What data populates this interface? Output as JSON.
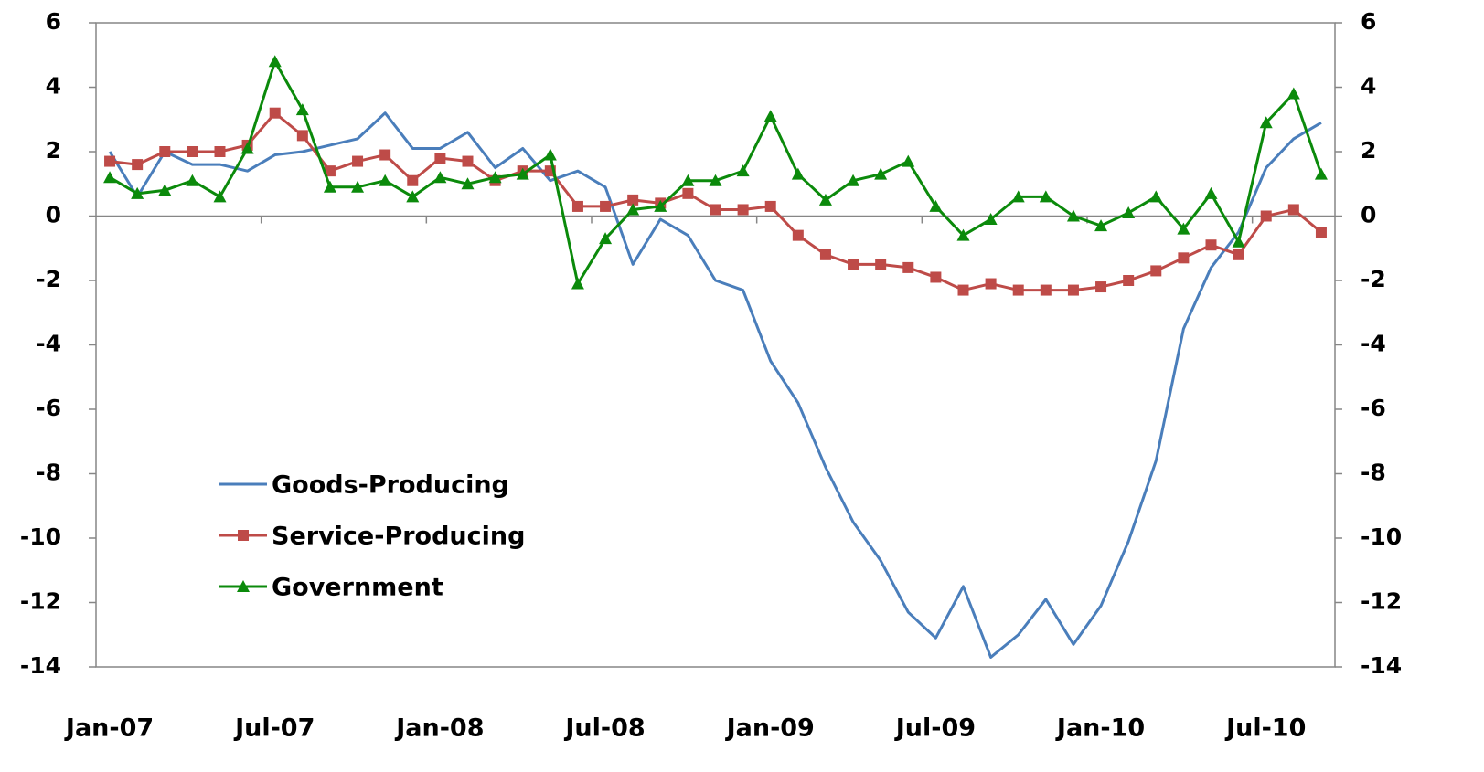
{
  "chart_data": {
    "type": "line",
    "categories": [
      "Jan-07",
      null,
      null,
      null,
      null,
      null,
      "Jul-07",
      null,
      null,
      null,
      null,
      null,
      "Jan-08",
      null,
      null,
      null,
      null,
      null,
      "Jul-08",
      null,
      null,
      null,
      null,
      null,
      "Jan-09",
      null,
      null,
      null,
      null,
      null,
      "Jul-09",
      null,
      null,
      null,
      null,
      null,
      "Jan-10",
      null,
      null,
      null,
      null,
      null,
      "Jul-10",
      null,
      null
    ],
    "series": [
      {
        "name": "Goods-Producing",
        "color": "#4a7ebb",
        "marker": "none",
        "values": [
          2.0,
          0.6,
          2.0,
          1.6,
          1.6,
          1.4,
          1.9,
          2.0,
          2.2,
          2.4,
          3.2,
          2.1,
          2.1,
          2.6,
          1.5,
          2.1,
          1.1,
          1.4,
          0.9,
          -1.5,
          -0.1,
          -0.6,
          -2.0,
          -2.3,
          -4.5,
          -5.8,
          -7.8,
          -9.5,
          -10.7,
          -12.3,
          -13.1,
          -11.5,
          -13.7,
          -13.0,
          -11.9,
          -13.3,
          -12.1,
          -10.1,
          -7.6,
          -3.5,
          -1.6,
          -0.5,
          1.5,
          2.4,
          2.9
        ]
      },
      {
        "name": "Service-Producing",
        "color": "#be4b48",
        "marker": "square",
        "values": [
          1.7,
          1.6,
          2.0,
          2.0,
          2.0,
          2.2,
          3.2,
          2.5,
          1.4,
          1.7,
          1.9,
          1.1,
          1.8,
          1.7,
          1.1,
          1.4,
          1.4,
          0.3,
          0.3,
          0.5,
          0.4,
          0.7,
          0.2,
          0.2,
          0.3,
          -0.6,
          -1.2,
          -1.5,
          -1.5,
          -1.6,
          -1.9,
          -2.3,
          -2.1,
          -2.3,
          -2.3,
          -2.3,
          -2.2,
          -2.0,
          -1.7,
          -1.3,
          -0.9,
          -1.2,
          0.0,
          0.2,
          -0.5
        ]
      },
      {
        "name": "Government",
        "color": "#0b8a0b",
        "marker": "triangle",
        "values": [
          1.2,
          0.7,
          0.8,
          1.1,
          0.6,
          2.1,
          4.8,
          3.3,
          0.9,
          0.9,
          1.1,
          0.6,
          1.2,
          1.0,
          1.2,
          1.3,
          1.9,
          -2.1,
          -0.7,
          0.2,
          0.3,
          1.1,
          1.1,
          1.4,
          3.1,
          1.3,
          0.5,
          1.1,
          1.3,
          1.7,
          0.3,
          -0.6,
          -0.1,
          0.6,
          0.6,
          0.0,
          -0.3,
          0.1,
          0.6,
          -0.4,
          0.7,
          -0.8,
          2.9,
          3.8,
          1.3
        ]
      }
    ],
    "ylim": [
      -14,
      6
    ],
    "yticks": [
      -14,
      -12,
      -10,
      -8,
      -6,
      -4,
      -2,
      0,
      2,
      4,
      6
    ],
    "y2lim": [
      -14,
      6
    ],
    "y2ticks": [
      -14,
      -12,
      -10,
      -8,
      -6,
      -4,
      -2,
      0,
      2,
      4,
      6
    ],
    "grid": false,
    "legend": "left"
  }
}
